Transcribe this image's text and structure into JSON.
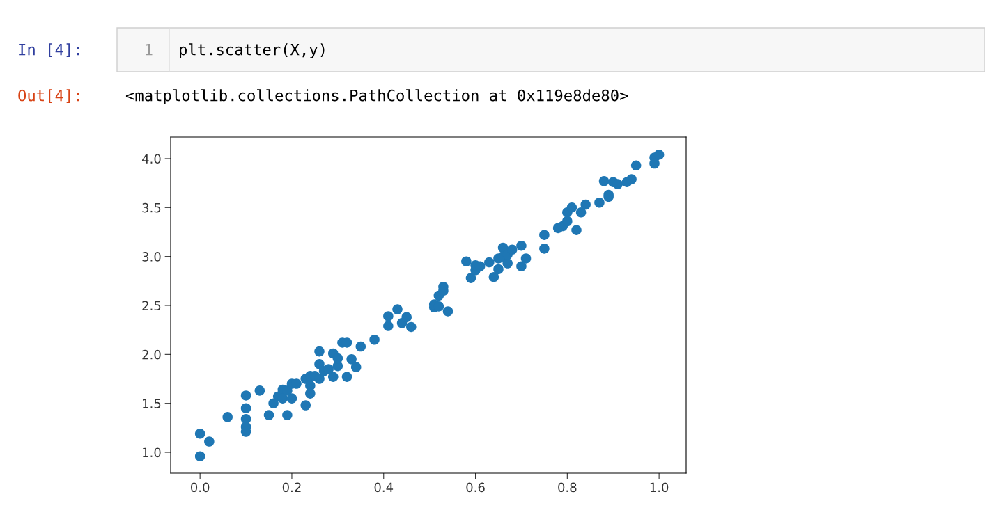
{
  "chart_data": {
    "type": "scatter",
    "annotations": [
      "In [4]:",
      "1",
      "plt.scatter(X,y)",
      "Out[4]:",
      "<matplotlib.collections.PathCollection at 0x119e8de80>"
    ],
    "x": [
      0.0,
      0.0,
      0.02,
      0.06,
      0.1,
      0.1,
      0.1,
      0.1,
      0.1,
      0.13,
      0.15,
      0.16,
      0.17,
      0.18,
      0.18,
      0.19,
      0.19,
      0.2,
      0.2,
      0.21,
      0.23,
      0.23,
      0.24,
      0.24,
      0.24,
      0.25,
      0.26,
      0.26,
      0.26,
      0.27,
      0.28,
      0.29,
      0.29,
      0.3,
      0.3,
      0.31,
      0.32,
      0.32,
      0.33,
      0.34,
      0.35,
      0.38,
      0.41,
      0.41,
      0.43,
      0.44,
      0.45,
      0.46,
      0.51,
      0.51,
      0.52,
      0.52,
      0.53,
      0.53,
      0.54,
      0.58,
      0.59,
      0.6,
      0.6,
      0.61,
      0.63,
      0.64,
      0.65,
      0.65,
      0.66,
      0.66,
      0.67,
      0.67,
      0.68,
      0.7,
      0.7,
      0.71,
      0.75,
      0.75,
      0.78,
      0.79,
      0.8,
      0.8,
      0.81,
      0.82,
      0.83,
      0.84,
      0.87,
      0.89,
      0.88,
      0.89,
      0.9,
      0.91,
      0.93,
      0.94,
      0.95,
      0.99,
      0.99,
      1.0
    ],
    "series": [
      {
        "color": "#1f77b4",
        "values": [
          1.19,
          0.96,
          1.11,
          1.36,
          1.58,
          1.45,
          1.34,
          1.26,
          1.21,
          1.63,
          1.38,
          1.5,
          1.57,
          1.64,
          1.55,
          1.38,
          1.63,
          1.55,
          1.7,
          1.7,
          1.48,
          1.75,
          1.6,
          1.78,
          1.68,
          1.78,
          2.03,
          1.75,
          1.9,
          1.83,
          1.85,
          1.77,
          2.01,
          1.88,
          1.96,
          2.12,
          2.12,
          1.77,
          1.95,
          1.87,
          2.08,
          2.15,
          2.29,
          2.39,
          2.46,
          2.32,
          2.38,
          2.28,
          2.48,
          2.51,
          2.49,
          2.6,
          2.65,
          2.69,
          2.44,
          2.95,
          2.78,
          2.86,
          2.91,
          2.9,
          2.94,
          2.79,
          2.98,
          2.87,
          3.09,
          3.0,
          2.93,
          3.02,
          3.07,
          3.11,
          2.9,
          2.98,
          3.22,
          3.08,
          3.29,
          3.31,
          3.45,
          3.36,
          3.5,
          3.27,
          3.45,
          3.53,
          3.55,
          3.61,
          3.77,
          3.63,
          3.76,
          3.74,
          3.76,
          3.79,
          3.93,
          4.01,
          3.95,
          4.04
        ]
      }
    ],
    "xlim": [
      -0.064,
      1.059
    ],
    "ylim": [
      0.787,
      4.22
    ],
    "xticks": [
      {
        "value": 0.0,
        "label": "0.0"
      },
      {
        "value": 0.2,
        "label": "0.2"
      },
      {
        "value": 0.4,
        "label": "0.4"
      },
      {
        "value": 0.6,
        "label": "0.6"
      },
      {
        "value": 0.8,
        "label": "0.8"
      },
      {
        "value": 1.0,
        "label": "1.0"
      }
    ],
    "yticks": [
      {
        "value": 1.0,
        "label": "1.0"
      },
      {
        "value": 1.5,
        "label": "1.5"
      },
      {
        "value": 2.0,
        "label": "2.0"
      },
      {
        "value": 2.5,
        "label": "2.5"
      },
      {
        "value": 3.0,
        "label": "3.0"
      },
      {
        "value": 3.5,
        "label": "3.5"
      },
      {
        "value": 4.0,
        "label": "4.0"
      }
    ],
    "marker": "circle",
    "grid": false
  }
}
